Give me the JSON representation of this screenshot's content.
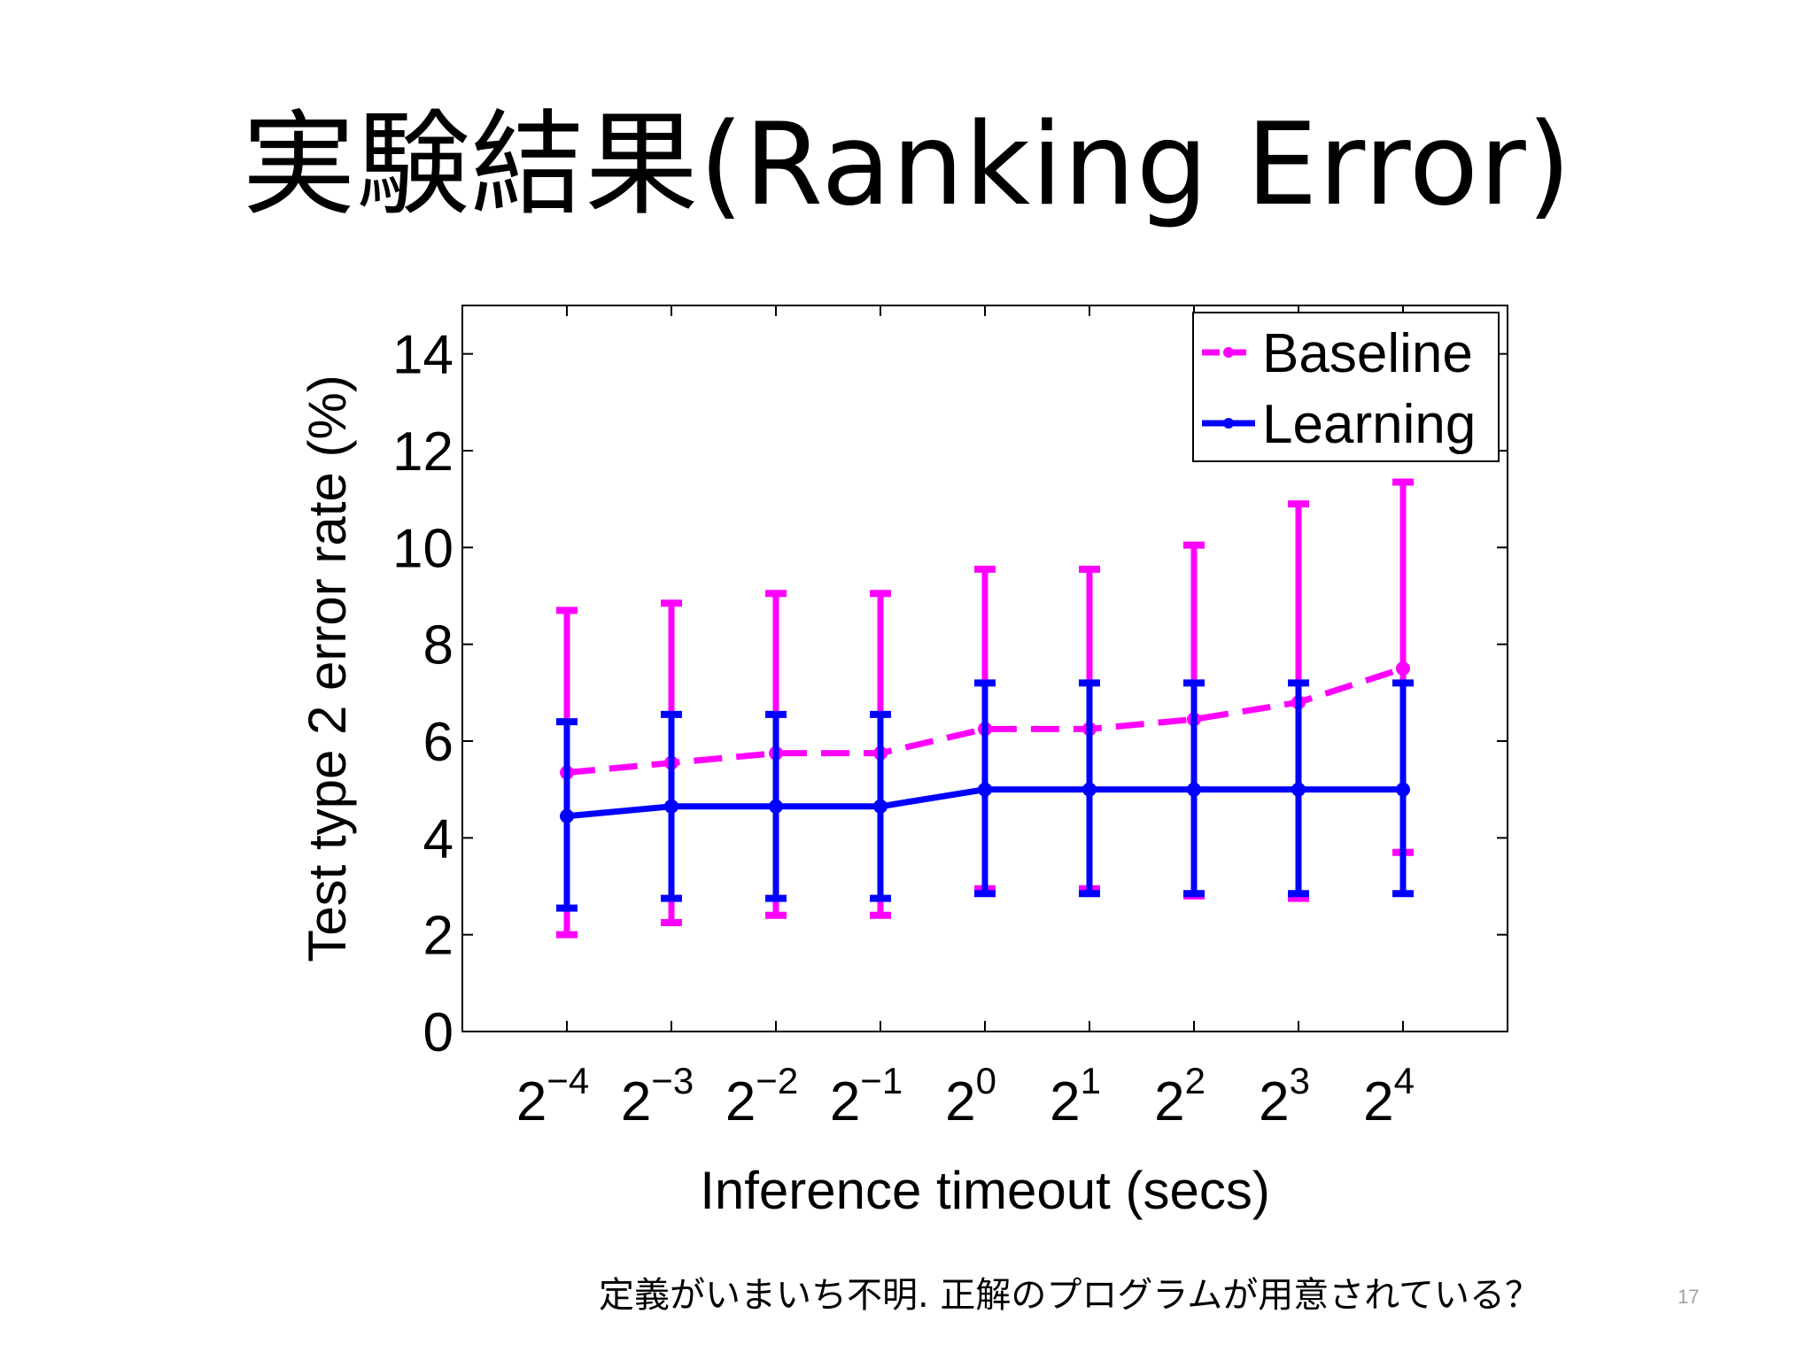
{
  "slide": {
    "title": "実験結果(Ranking Error)",
    "footnote": "定義がいまいち不明. 正解のプログラムが用意されている？",
    "page_number": "17"
  },
  "chart_data": {
    "type": "line",
    "xlabel": "Inference timeout (secs)",
    "ylabel": "Test type 2 error rate (%)",
    "ylim": [
      0,
      15
    ],
    "yticks": [
      0,
      2,
      4,
      6,
      8,
      10,
      12,
      14
    ],
    "x_tick_base": "2",
    "x_tick_exponents": [
      "−4",
      "−3",
      "−2",
      "−1",
      "0",
      "1",
      "2",
      "3",
      "4"
    ],
    "x": [
      0.0625,
      0.125,
      0.25,
      0.5,
      1,
      2,
      4,
      8,
      16
    ],
    "legend_position": "top-right",
    "grid": false,
    "series": [
      {
        "name": "Baseline",
        "color": "#ff00ff",
        "style": "dashed",
        "values": [
          5.35,
          5.55,
          5.75,
          5.75,
          6.25,
          6.25,
          6.45,
          6.8,
          7.5
        ],
        "err_low": [
          2.0,
          2.25,
          2.4,
          2.4,
          2.95,
          2.95,
          2.8,
          2.75,
          3.7
        ],
        "err_high": [
          8.7,
          8.85,
          9.05,
          9.05,
          9.55,
          9.55,
          10.05,
          10.9,
          11.35
        ]
      },
      {
        "name": "Learning",
        "color": "#0000ff",
        "style": "solid",
        "values": [
          4.45,
          4.65,
          4.65,
          4.65,
          5.0,
          5.0,
          5.0,
          5.0,
          5.0
        ],
        "err_low": [
          2.55,
          2.75,
          2.75,
          2.75,
          2.85,
          2.85,
          2.85,
          2.85,
          2.85
        ],
        "err_high": [
          6.4,
          6.55,
          6.55,
          6.55,
          7.2,
          7.2,
          7.2,
          7.2,
          7.2
        ]
      }
    ]
  }
}
